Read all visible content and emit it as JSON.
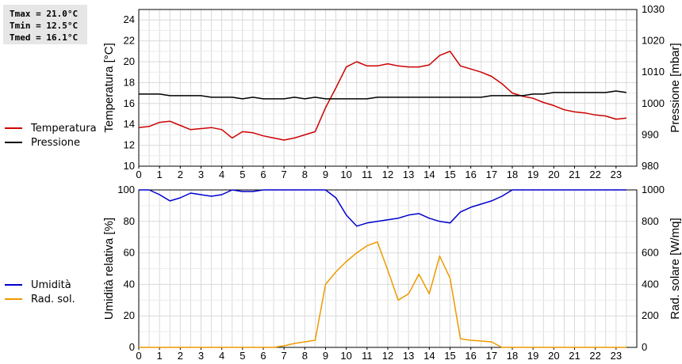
{
  "stats": {
    "tmax": "Tmax = 21.0°C",
    "tmin": "Tmin = 12.5°C",
    "tmed": "Tmed = 16.1°C"
  },
  "chart_data": [
    {
      "type": "line",
      "ylabel_left": "Temperatura [°C]",
      "ylabel_right": "Pressione [mbar]",
      "xlim": [
        0,
        24
      ],
      "ylim_left": [
        10,
        25
      ],
      "ylim_right": [
        980,
        1030
      ],
      "x_ticks": [
        0,
        1,
        2,
        3,
        4,
        5,
        6,
        7,
        8,
        9,
        10,
        11,
        12,
        13,
        14,
        15,
        16,
        17,
        18,
        19,
        20,
        21,
        22,
        23
      ],
      "y_ticks_left": [
        10,
        12,
        14,
        16,
        18,
        20,
        22,
        24
      ],
      "y_ticks_right": [
        980,
        990,
        1000,
        1010,
        1020,
        1030
      ],
      "grid": true,
      "series": [
        {
          "name": "Temperatura",
          "color": "#cc0000",
          "axis": "left",
          "x": [
            0,
            0.5,
            1,
            1.5,
            2,
            2.5,
            3,
            3.5,
            4,
            4.5,
            5,
            5.5,
            6,
            6.5,
            7,
            7.5,
            8,
            8.5,
            9,
            9.5,
            10,
            10.5,
            11,
            11.5,
            12,
            12.5,
            13,
            13.5,
            14,
            14.5,
            15,
            15.5,
            16,
            16.5,
            17,
            17.5,
            18,
            18.5,
            19,
            19.5,
            20,
            20.5,
            21,
            21.5,
            22,
            22.5,
            23,
            23.5
          ],
          "values": [
            13.7,
            13.8,
            14.2,
            14.3,
            13.9,
            13.5,
            13.6,
            13.7,
            13.5,
            12.7,
            13.3,
            13.2,
            12.9,
            12.7,
            12.5,
            12.7,
            13.0,
            13.3,
            15.6,
            17.5,
            19.5,
            20.0,
            19.6,
            19.6,
            19.8,
            19.6,
            19.5,
            19.5,
            19.7,
            20.6,
            21.0,
            19.6,
            19.3,
            19.0,
            18.6,
            17.9,
            17.0,
            16.7,
            16.5,
            16.1,
            15.8,
            15.4,
            15.2,
            15.1,
            14.9,
            14.8,
            14.5,
            14.6
          ]
        },
        {
          "name": "Pressione",
          "color": "#000000",
          "axis": "right",
          "x": [
            0,
            0.5,
            1,
            1.5,
            2,
            2.5,
            3,
            3.5,
            4,
            4.5,
            5,
            5.5,
            6,
            6.5,
            7,
            7.5,
            8,
            8.5,
            9,
            9.5,
            10,
            10.5,
            11,
            11.5,
            12,
            12.5,
            13,
            13.5,
            14,
            14.5,
            15,
            15.5,
            16,
            16.5,
            17,
            17.5,
            18,
            18.5,
            19,
            19.5,
            20,
            20.5,
            21,
            21.5,
            22,
            22.5,
            23,
            23.5
          ],
          "values": [
            1003,
            1003,
            1003,
            1002.5,
            1002.5,
            1002.5,
            1002.5,
            1002,
            1002,
            1002,
            1001.5,
            1002,
            1001.5,
            1001.5,
            1001.5,
            1002,
            1001.5,
            1002,
            1001.5,
            1001.5,
            1001.5,
            1001.5,
            1001.5,
            1002,
            1002,
            1002,
            1002,
            1002,
            1002,
            1002,
            1002,
            1002,
            1002,
            1002,
            1002.5,
            1002.5,
            1002.5,
            1002.5,
            1003,
            1003,
            1003.5,
            1003.5,
            1003.5,
            1003.5,
            1003.5,
            1003.5,
            1004,
            1003.5
          ]
        }
      ]
    },
    {
      "type": "line",
      "ylabel_left": "Umidità relativa [%]",
      "ylabel_right": "Rad. solare [W/mq]",
      "xlim": [
        0,
        24
      ],
      "ylim_left": [
        0,
        100
      ],
      "ylim_right": [
        0,
        1000
      ],
      "x_ticks": [
        0,
        1,
        2,
        3,
        4,
        5,
        6,
        7,
        8,
        9,
        10,
        11,
        12,
        13,
        14,
        15,
        16,
        17,
        18,
        19,
        20,
        21,
        22,
        23
      ],
      "y_ticks_left": [
        0,
        20,
        40,
        60,
        80,
        100
      ],
      "y_ticks_right": [
        0,
        200,
        400,
        600,
        800,
        1000
      ],
      "grid": true,
      "series": [
        {
          "name": "Umidità",
          "color": "#0000cc",
          "axis": "left",
          "x": [
            0,
            0.5,
            1,
            1.5,
            2,
            2.5,
            3,
            3.5,
            4,
            4.5,
            5,
            5.5,
            6,
            6.5,
            7,
            7.5,
            8,
            8.5,
            9,
            9.5,
            10,
            10.5,
            11,
            11.5,
            12,
            12.5,
            13,
            13.5,
            14,
            14.5,
            15,
            15.5,
            16,
            16.5,
            17,
            17.5,
            18,
            18.5,
            19,
            19.5,
            20,
            20.5,
            21,
            21.5,
            22,
            22.5,
            23,
            23.5
          ],
          "values": [
            100,
            100,
            97,
            93,
            95,
            98,
            97,
            96,
            97,
            100,
            99,
            99,
            100,
            100,
            100,
            100,
            100,
            100,
            100,
            95,
            84,
            77,
            79,
            80,
            81,
            82,
            84,
            85,
            82,
            80,
            79,
            86,
            89,
            91,
            93,
            96,
            100,
            100,
            100,
            100,
            100,
            100,
            100,
            100,
            100,
            100,
            100,
            100
          ]
        },
        {
          "name": "Rad. sol.",
          "color": "#ee9900",
          "axis": "right",
          "x": [
            0,
            0.5,
            1,
            1.5,
            2,
            2.5,
            3,
            3.5,
            4,
            4.5,
            5,
            5.5,
            6,
            6.5,
            7,
            7.5,
            8,
            8.5,
            9,
            9.5,
            10,
            10.5,
            11,
            11.5,
            12,
            12.5,
            13,
            13.5,
            14,
            14.5,
            15,
            15.5,
            16,
            16.5,
            17,
            17.5,
            18,
            18.5,
            19,
            19.5,
            20,
            20.5,
            21,
            21.5,
            22,
            22.5,
            23,
            23.5
          ],
          "values": [
            0,
            0,
            0,
            0,
            0,
            0,
            0,
            0,
            0,
            0,
            0,
            0,
            0,
            0,
            10,
            25,
            35,
            45,
            400,
            480,
            545,
            600,
            645,
            670,
            490,
            300,
            340,
            465,
            340,
            580,
            440,
            55,
            45,
            40,
            35,
            0,
            0,
            0,
            0,
            0,
            0,
            0,
            0,
            0,
            0,
            0,
            0,
            0
          ]
        }
      ]
    }
  ]
}
